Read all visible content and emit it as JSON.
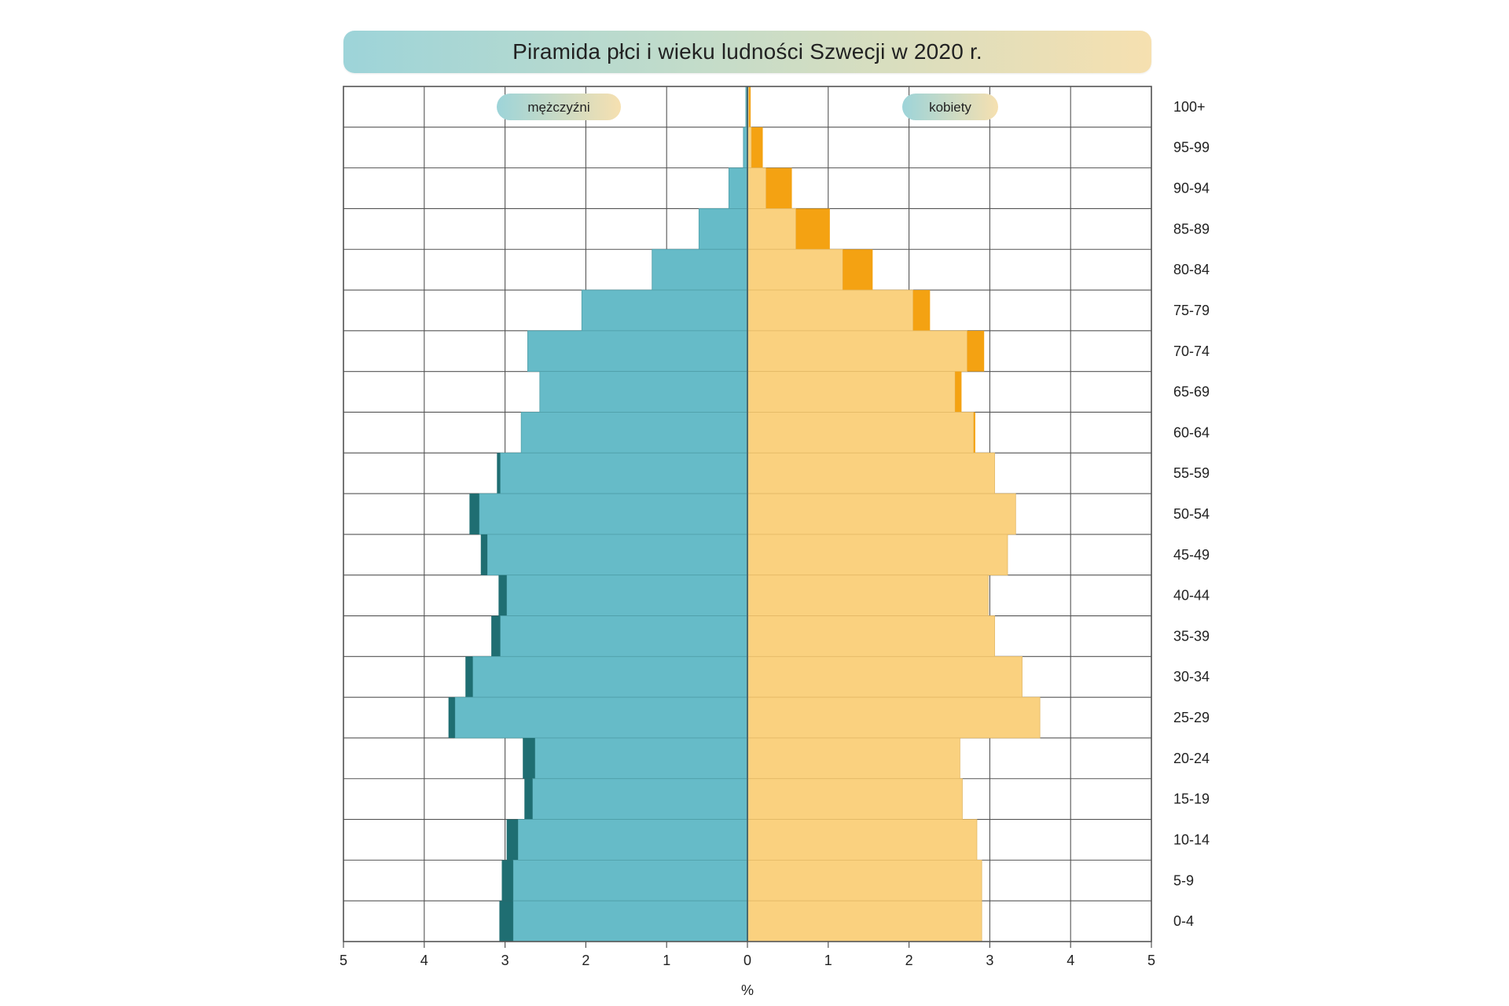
{
  "title": "Piramida płci i wieku ludności Szwecji w 2020 r.",
  "colors": {
    "male": "#66bbc8",
    "male_excess": "#1f6e72",
    "female": "#fad17f",
    "female_excess": "#f4a212",
    "grid": "#555555"
  },
  "chart_data": {
    "type": "bar",
    "orientation": "horizontal-population-pyramid",
    "title": "Piramida płci i wieku ludności Szwecji w 2020 r.",
    "xlabel": "%",
    "ylabel": "",
    "xlim": [
      -5,
      5
    ],
    "x_ticks": [
      -5,
      -4,
      -3,
      -2,
      -1,
      0,
      1,
      2,
      3,
      4,
      5
    ],
    "x_tick_labels": [
      "5",
      "4",
      "3",
      "2",
      "1",
      "0",
      "1",
      "2",
      "3",
      "4",
      "5"
    ],
    "grid": true,
    "legend_placement": "top, inside each half",
    "categories": [
      "100+",
      "95-99",
      "90-94",
      "85-89",
      "80-84",
      "75-79",
      "70-74",
      "65-69",
      "60-64",
      "55-59",
      "50-54",
      "45-49",
      "40-44",
      "35-39",
      "30-34",
      "25-29",
      "20-24",
      "15-19",
      "10-14",
      "5-9",
      "0-4"
    ],
    "series": [
      {
        "name": "mężczyźni",
        "values": [
          0.02,
          0.05,
          0.23,
          0.6,
          1.18,
          2.05,
          2.72,
          2.57,
          2.8,
          3.1,
          3.44,
          3.3,
          3.08,
          3.17,
          3.49,
          3.7,
          2.78,
          2.76,
          2.98,
          3.04,
          3.07
        ]
      },
      {
        "name": "kobiety",
        "values": [
          0.04,
          0.19,
          0.55,
          1.02,
          1.55,
          2.26,
          2.93,
          2.65,
          2.82,
          3.06,
          3.32,
          3.22,
          2.98,
          3.06,
          3.4,
          3.62,
          2.63,
          2.66,
          2.84,
          2.9,
          2.9
        ]
      }
    ]
  }
}
